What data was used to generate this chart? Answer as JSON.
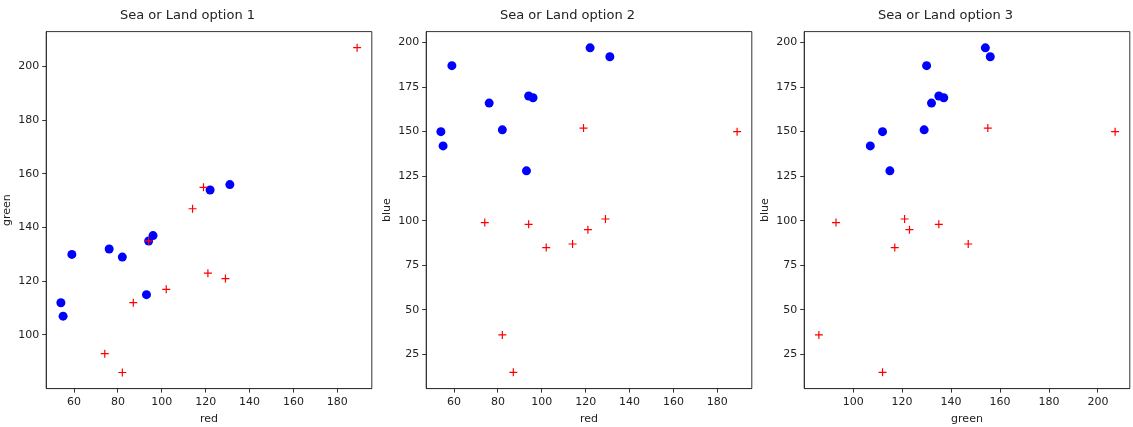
{
  "chart_data": [
    {
      "type": "scatter",
      "title": "Sea or Land option 1",
      "xlabel": "red",
      "ylabel": "green",
      "xlim": [
        47.3,
        195.7
      ],
      "ylim": [
        80,
        213
      ],
      "xticks": [
        60,
        80,
        100,
        120,
        140,
        160,
        180
      ],
      "yticks": [
        100,
        120,
        140,
        160,
        180,
        200
      ],
      "series": [
        {
          "color": "#0000ff",
          "marker": "circle",
          "x": [
            54,
            55,
            59,
            76,
            82,
            93,
            94,
            96,
            122,
            131
          ],
          "values": [
            112,
            107,
            130,
            132,
            129,
            115,
            135,
            137,
            154,
            156
          ]
        },
        {
          "color": "#ff0000",
          "marker": "cross",
          "x": [
            74,
            82,
            87,
            94,
            102,
            114,
            119,
            121,
            129,
            189
          ],
          "values": [
            93,
            86,
            112,
            135,
            117,
            147,
            155,
            123,
            121,
            207
          ]
        }
      ]
    },
    {
      "type": "scatter",
      "title": "Sea or Land option 2",
      "xlabel": "red",
      "ylabel": "blue",
      "xlim": [
        47.3,
        195.7
      ],
      "ylim": [
        5.9,
        206.1
      ],
      "xticks": [
        60,
        80,
        100,
        120,
        140,
        160,
        180
      ],
      "yticks": [
        25,
        50,
        75,
        100,
        125,
        150,
        175,
        200
      ],
      "series": [
        {
          "color": "#0000ff",
          "marker": "circle",
          "x": [
            54,
            55,
            59,
            76,
            82,
            93,
            94,
            96,
            122,
            131
          ],
          "values": [
            150,
            142,
            187,
            166,
            151,
            128,
            170,
            169,
            197,
            192
          ]
        },
        {
          "color": "#ff0000",
          "marker": "cross",
          "x": [
            74,
            82,
            87,
            94,
            102,
            114,
            119,
            121,
            129,
            189
          ],
          "values": [
            99,
            36,
            15,
            98,
            85,
            87,
            152,
            95,
            101,
            150
          ]
        }
      ]
    },
    {
      "type": "scatter",
      "title": "Sea or Land option 3",
      "xlabel": "green",
      "ylabel": "blue",
      "xlim": [
        80,
        213
      ],
      "ylim": [
        5.9,
        206.1
      ],
      "xticks": [
        100,
        120,
        140,
        160,
        180,
        200
      ],
      "yticks": [
        25,
        50,
        75,
        100,
        125,
        150,
        175,
        200
      ],
      "series": [
        {
          "color": "#0000ff",
          "marker": "circle",
          "x": [
            112,
            107,
            130,
            132,
            129,
            115,
            135,
            137,
            154,
            156
          ],
          "values": [
            150,
            142,
            187,
            166,
            151,
            128,
            170,
            169,
            197,
            192
          ]
        },
        {
          "color": "#ff0000",
          "marker": "cross",
          "x": [
            93,
            86,
            112,
            135,
            117,
            147,
            155,
            123,
            121,
            207
          ],
          "values": [
            99,
            36,
            15,
            98,
            85,
            87,
            152,
            95,
            101,
            150
          ]
        }
      ]
    }
  ]
}
